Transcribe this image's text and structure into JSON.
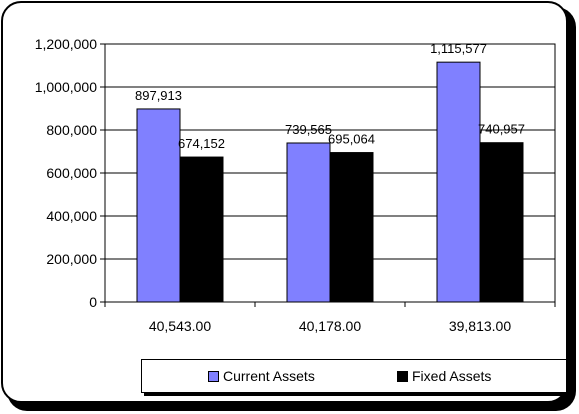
{
  "chart_data": {
    "type": "bar",
    "title": "",
    "xlabel": "",
    "ylabel": "",
    "categories": [
      "40,543.00",
      "40,178.00",
      "39,813.00"
    ],
    "series": [
      {
        "name": "Current Assets",
        "color": "#8080ff",
        "values": [
          897913,
          739565,
          1115577
        ],
        "labels": [
          "897,913",
          "739,565",
          "1,115,577"
        ]
      },
      {
        "name": "Fixed Assets",
        "color": "#000000",
        "values": [
          674152,
          695064,
          740957
        ],
        "labels": [
          "674,152",
          "695,064",
          "740,957"
        ]
      }
    ],
    "ylim": [
      0,
      1200000
    ],
    "yticks": [
      0,
      200000,
      400000,
      600000,
      800000,
      1000000,
      1200000
    ],
    "ytick_labels": [
      "0",
      "200,000",
      "400,000",
      "600,000",
      "800,000",
      "1,000,000",
      "1,200,000"
    ],
    "grid": true,
    "legend": "bottom"
  }
}
